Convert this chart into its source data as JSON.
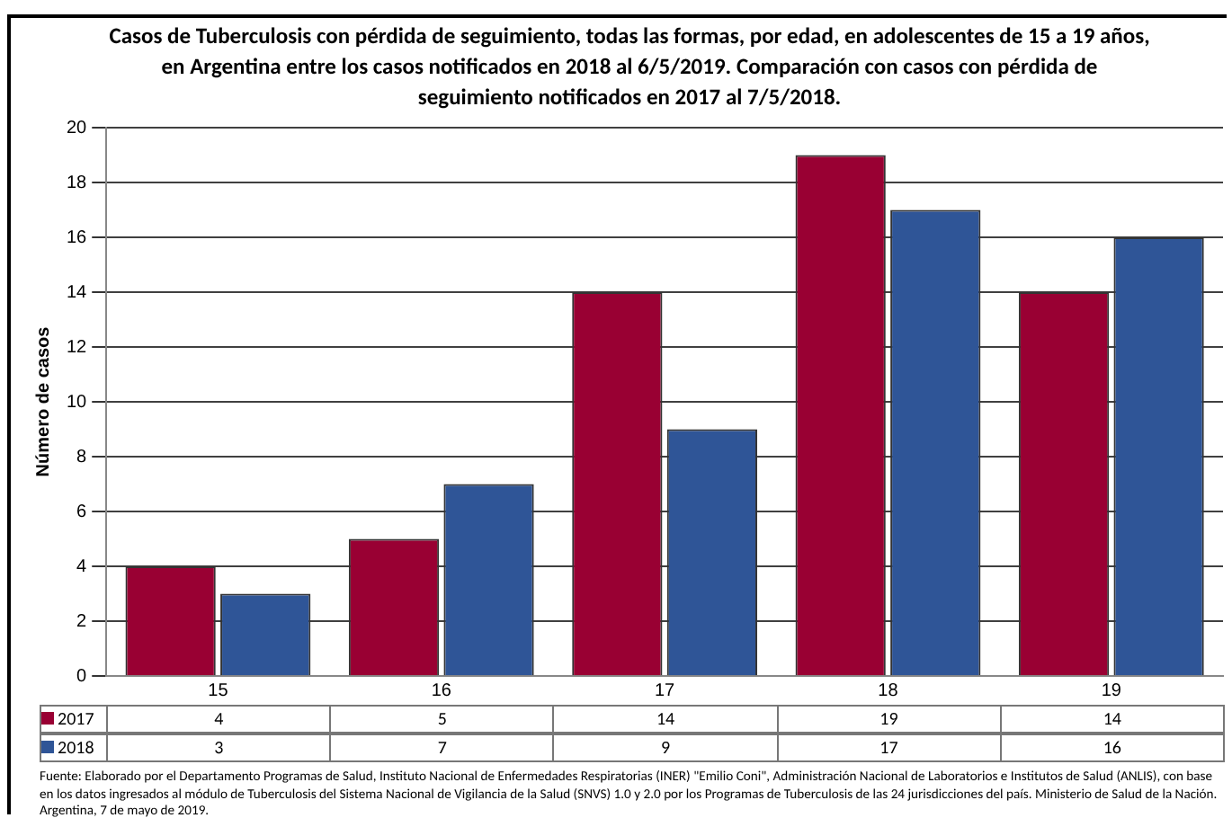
{
  "chart_data": {
    "type": "bar",
    "title": "Casos de Tuberculosis con pérdida de seguimiento, todas las formas, por edad, en adolescentes de 15 a 19 años, en Argentina entre los casos notificados en 2018 al 6/5/2019. Comparación con casos con pérdida de seguimiento notificados en 2017 al 7/5/2018.",
    "ylabel": "Número de casos",
    "categories": [
      "15",
      "16",
      "17",
      "18",
      "19"
    ],
    "series": [
      {
        "name": "2017",
        "color": "#990033",
        "values": [
          4,
          5,
          14,
          19,
          14
        ]
      },
      {
        "name": "2018",
        "color": "#2f5597",
        "values": [
          3,
          7,
          9,
          17,
          16
        ]
      }
    ],
    "ylim": [
      0,
      20
    ],
    "yticks": [
      0,
      2,
      4,
      6,
      8,
      10,
      12,
      14,
      16,
      18,
      20
    ],
    "grid": "y",
    "legend": "bottom",
    "data_labels": true,
    "annotations": [
      "Fuente: Elaborado por el Departamento Programas de Salud, Instituto Nacional de Enfermedades Respiratorias (INER) \"Emilio Coni\", Administración Nacional de Laboratorios e Institutos de Salud (ANLIS), con base en los datos ingresados al módulo de Tuberculosis del Sistema Nacional de Vigilancia de la Salud (SNVS) 1.0 y 2.0 por los Programas de Tuberculosis de las 24 jurisdicciones del país. Ministerio de Salud de la Nación. Argentina, 7 de mayo de 2019."
    ]
  }
}
